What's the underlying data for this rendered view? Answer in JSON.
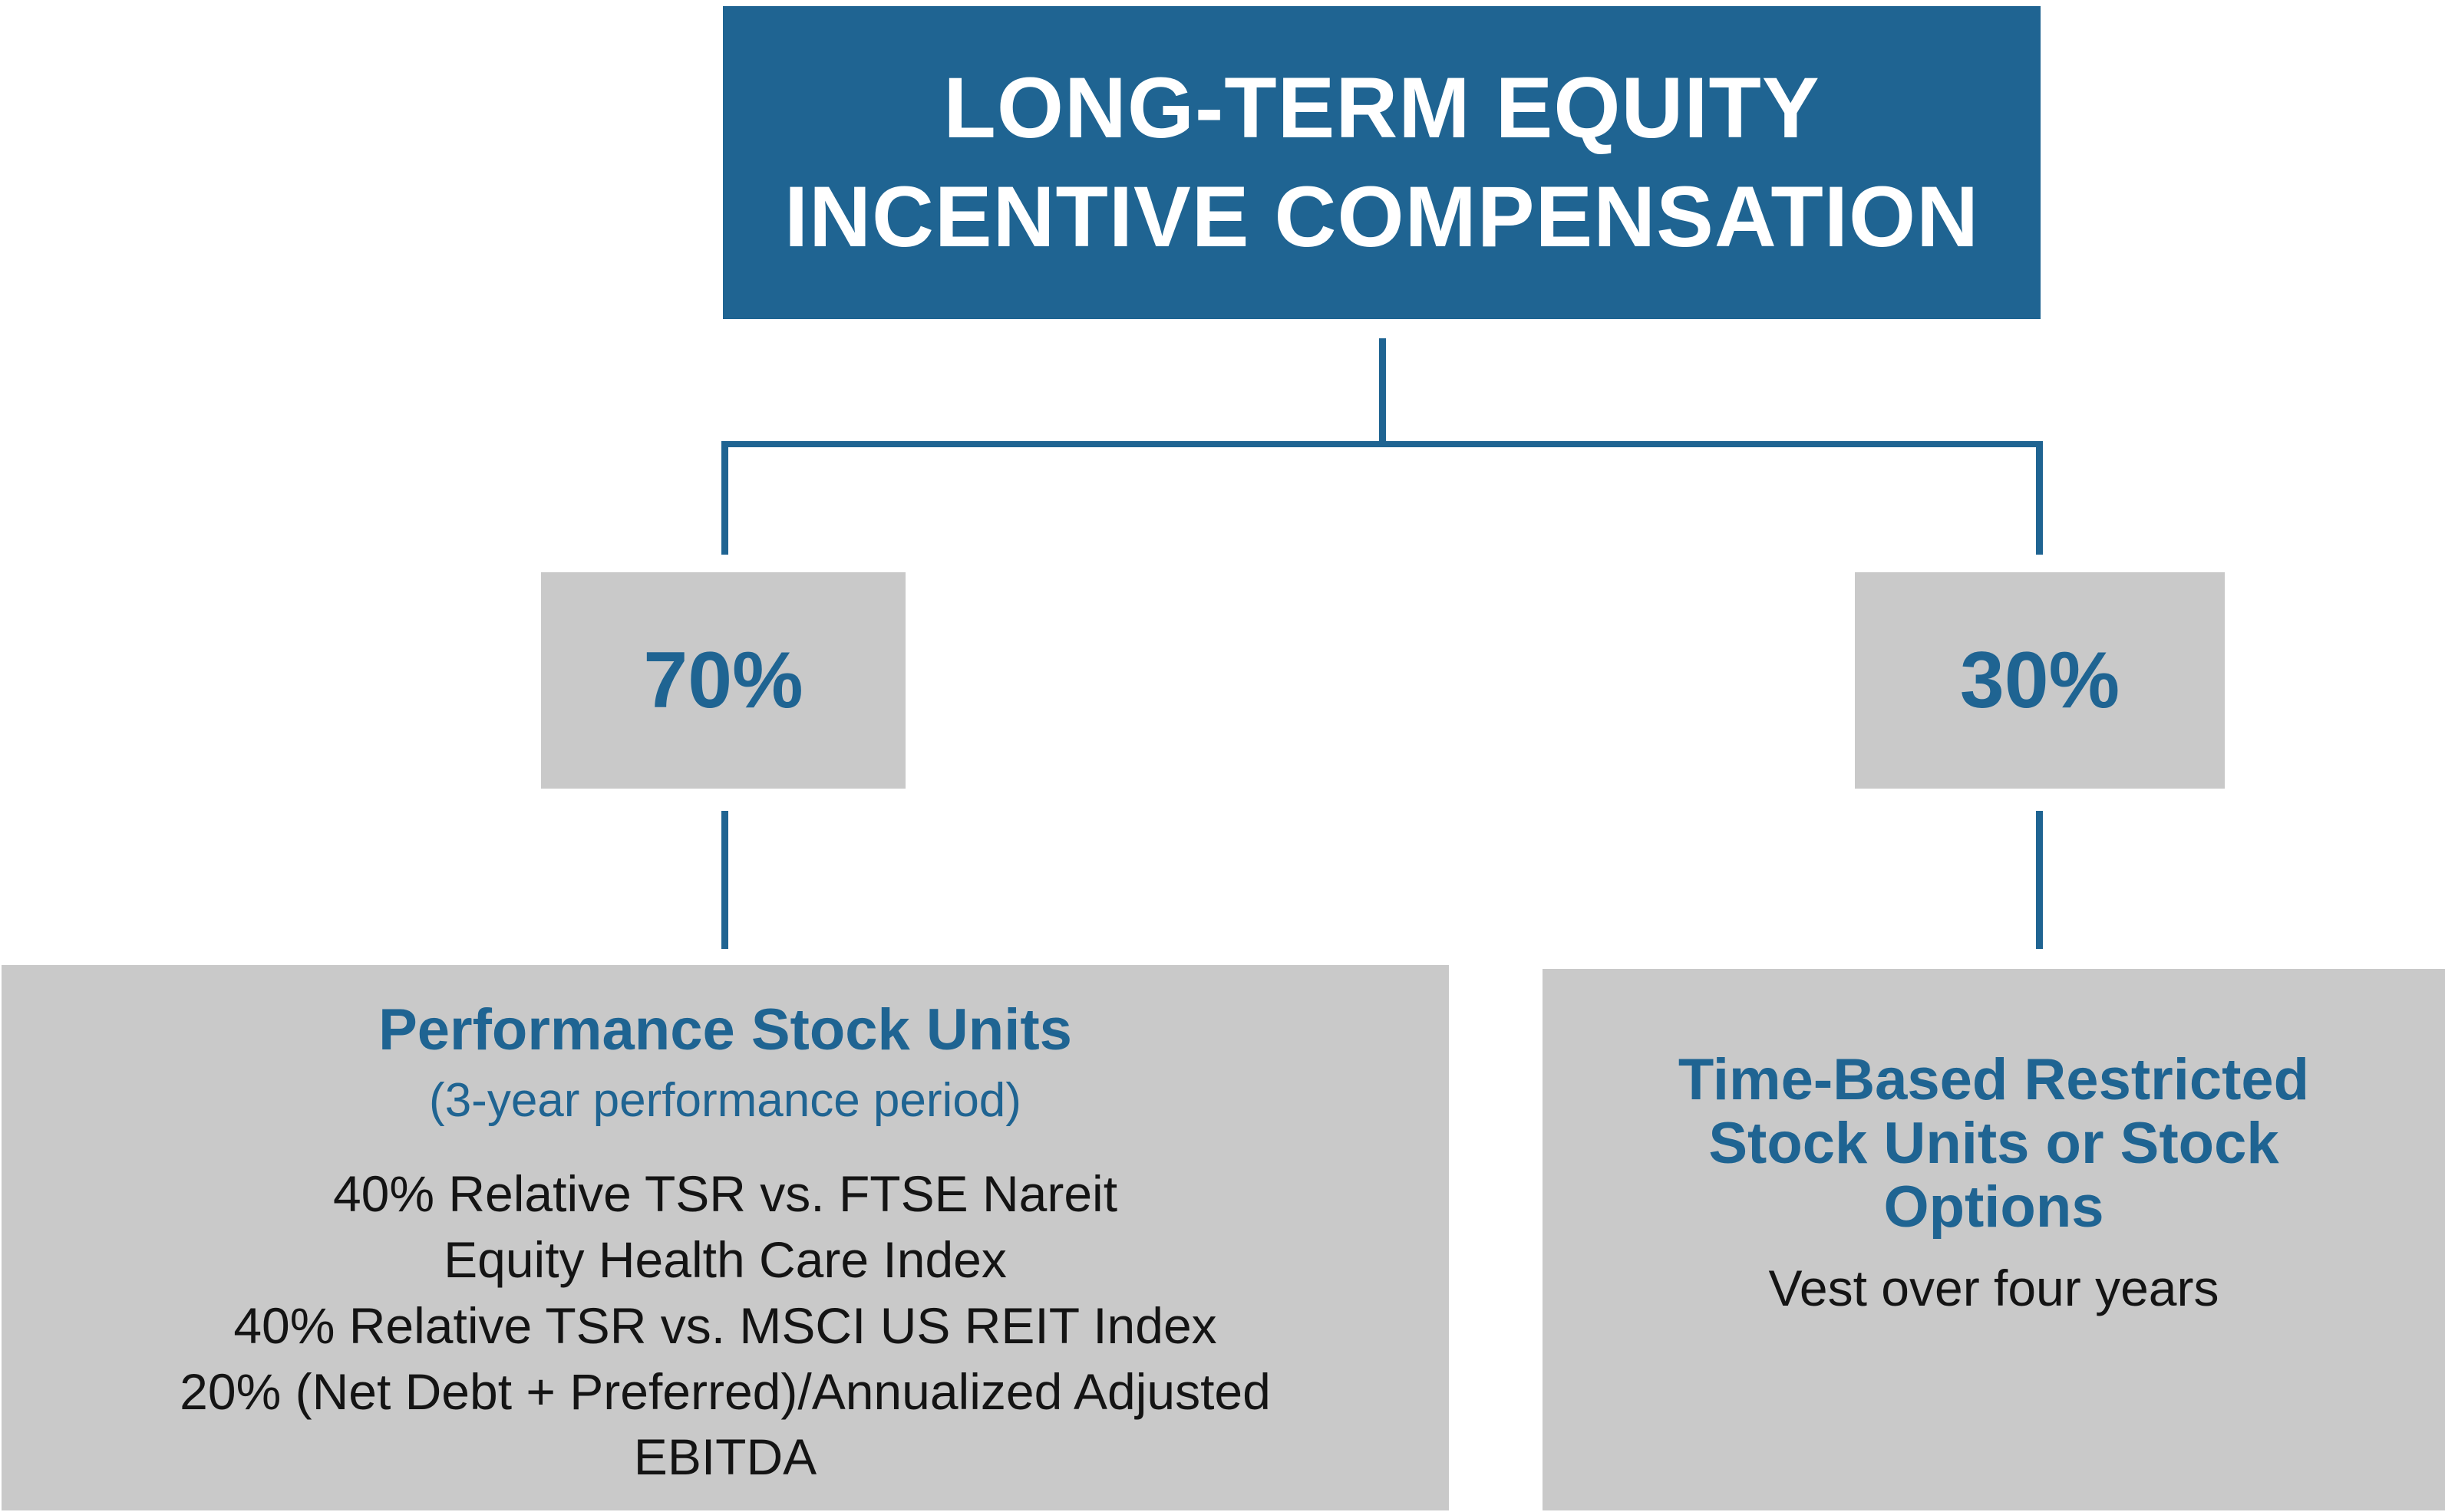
{
  "colors": {
    "blue": "#1f6492",
    "gray": "#c9c9c9",
    "dark": "#141414",
    "white": "#ffffff"
  },
  "header": {
    "title_line1": "LONG-TERM EQUITY",
    "title_line2": "INCENTIVE COMPENSATION"
  },
  "branches": {
    "left": {
      "percentage": "70%",
      "box": {
        "title": "Performance Stock Units",
        "subtitle": "(3-year performance period)",
        "body_lines": [
          "40% Relative TSR vs. FTSE Nareit",
          "Equity Health Care Index",
          "40% Relative TSR vs. MSCI US REIT Index",
          "20% (Net Debt + Preferred)/Annualized Adjusted",
          "EBITDA"
        ]
      }
    },
    "right": {
      "percentage": "30%",
      "box": {
        "title_lines": [
          "Time-Based Restricted",
          "Stock Units or Stock",
          "Options"
        ],
        "body": "Vest over four years"
      }
    }
  }
}
